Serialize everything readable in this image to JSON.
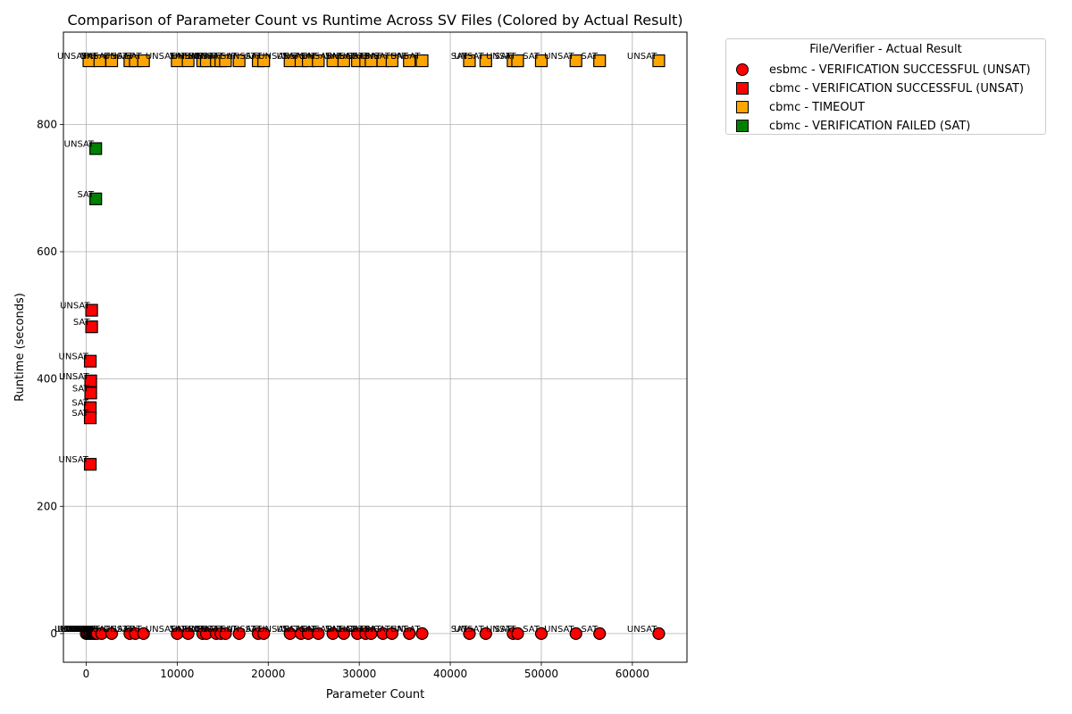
{
  "chart_data": {
    "type": "scatter",
    "title": "Comparison of Parameter Count vs Runtime Across SV Files (Colored by Actual Result)",
    "xlabel": "Parameter Count",
    "ylabel": "Runtime (seconds)",
    "xlim": [
      -2500,
      66000
    ],
    "ylim": [
      -45,
      945
    ],
    "xticks": [
      0,
      10000,
      20000,
      30000,
      40000,
      50000,
      60000
    ],
    "yticks": [
      0,
      200,
      400,
      600,
      800
    ],
    "grid": true,
    "legend": {
      "title": "File/Verifier - Actual Result",
      "placement": "outside-right",
      "entries": [
        {
          "label": "esbmc - VERIFICATION SUCCESSFUL (UNSAT)",
          "marker": "circle",
          "color": "#ff0000"
        },
        {
          "label": "cbmc - VERIFICATION SUCCESSFUL (UNSAT)",
          "marker": "square",
          "color": "#ff0000"
        },
        {
          "label": "cbmc - TIMEOUT",
          "marker": "square",
          "color": "#ffa500"
        },
        {
          "label": "cbmc - VERIFICATION FAILED (SAT)",
          "marker": "square",
          "color": "#008000"
        }
      ]
    },
    "series": [
      {
        "name": "esbmc - VERIFICATION SUCCESSFUL (UNSAT)",
        "marker": "circle",
        "color": "#ff0000",
        "points": [
          {
            "x": 0,
            "y": 0,
            "label": "UNSAT"
          },
          {
            "x": 150,
            "y": 0,
            "label": "SAT"
          },
          {
            "x": 300,
            "y": 0,
            "label": "UNSAT"
          },
          {
            "x": 450,
            "y": 0,
            "label": "SAT"
          },
          {
            "x": 600,
            "y": 0,
            "label": "UNSAT"
          },
          {
            "x": 700,
            "y": 0,
            "label": "SAT"
          },
          {
            "x": 800,
            "y": 0,
            "label": "UNSAT"
          },
          {
            "x": 900,
            "y": 0,
            "label": "SAT"
          },
          {
            "x": 1000,
            "y": 0,
            "label": "UNSAT"
          },
          {
            "x": 1100,
            "y": 0,
            "label": "SAT"
          },
          {
            "x": 1200,
            "y": 0,
            "label": "UNSAT"
          },
          {
            "x": 1700,
            "y": 0,
            "label": "SAT"
          },
          {
            "x": 2800,
            "y": 0,
            "label": "UNSAT"
          },
          {
            "x": 4800,
            "y": 0,
            "label": "SAT"
          },
          {
            "x": 5400,
            "y": 0,
            "label": "UNSAT"
          },
          {
            "x": 6300,
            "y": 0,
            "label": "SAT"
          },
          {
            "x": 10000,
            "y": 0,
            "label": "UNSAT"
          },
          {
            "x": 11200,
            "y": 0,
            "label": "SAT"
          },
          {
            "x": 12800,
            "y": 0,
            "label": "UNSAT"
          },
          {
            "x": 13200,
            "y": 0,
            "label": "SAT"
          },
          {
            "x": 14300,
            "y": 0,
            "label": "UNSAT"
          },
          {
            "x": 14800,
            "y": 0,
            "label": "SAT"
          },
          {
            "x": 15300,
            "y": 0,
            "label": "UNSAT"
          },
          {
            "x": 16800,
            "y": 0,
            "label": "SAT"
          },
          {
            "x": 18900,
            "y": 0,
            "label": "UNSAT"
          },
          {
            "x": 19500,
            "y": 0,
            "label": "SAT"
          },
          {
            "x": 22400,
            "y": 0,
            "label": "UNSAT"
          },
          {
            "x": 23600,
            "y": 0,
            "label": "SAT"
          },
          {
            "x": 24400,
            "y": 0,
            "label": "UNSAT"
          },
          {
            "x": 25500,
            "y": 0,
            "label": "SAT"
          },
          {
            "x": 27100,
            "y": 0,
            "label": "UNSAT"
          },
          {
            "x": 28300,
            "y": 0,
            "label": "SAT"
          },
          {
            "x": 29800,
            "y": 0,
            "label": "UNSAT"
          },
          {
            "x": 30700,
            "y": 0,
            "label": "SAT"
          },
          {
            "x": 31300,
            "y": 0,
            "label": "UNSAT"
          },
          {
            "x": 32600,
            "y": 0,
            "label": "SAT"
          },
          {
            "x": 33600,
            "y": 0,
            "label": "UNSAT"
          },
          {
            "x": 35500,
            "y": 0,
            "label": "SAT"
          },
          {
            "x": 36900,
            "y": 0,
            "label": "UNSAT"
          },
          {
            "x": 42100,
            "y": 0,
            "label": "SAT"
          },
          {
            "x": 43900,
            "y": 0,
            "label": "UNSAT"
          },
          {
            "x": 46900,
            "y": 0,
            "label": "SAT"
          },
          {
            "x": 47400,
            "y": 0,
            "label": "UNSAT"
          },
          {
            "x": 50000,
            "y": 0,
            "label": "SAT"
          },
          {
            "x": 53800,
            "y": 0,
            "label": "UNSAT"
          },
          {
            "x": 56400,
            "y": 0,
            "label": "SAT"
          },
          {
            "x": 62900,
            "y": 0,
            "label": "UNSAT"
          }
        ]
      },
      {
        "name": "cbmc - VERIFICATION SUCCESSFUL (UNSAT)",
        "marker": "square",
        "color": "#ff0000",
        "points": [
          {
            "x": 600,
            "y": 508,
            "label": "UNSAT"
          },
          {
            "x": 600,
            "y": 482,
            "label": "SAT"
          },
          {
            "x": 450,
            "y": 428,
            "label": "UNSAT"
          },
          {
            "x": 500,
            "y": 397,
            "label": "UNSAT"
          },
          {
            "x": 500,
            "y": 378,
            "label": "SAT"
          },
          {
            "x": 450,
            "y": 355,
            "label": "SAT"
          },
          {
            "x": 450,
            "y": 339,
            "label": "SAT"
          },
          {
            "x": 450,
            "y": 266,
            "label": "UNSAT"
          }
        ]
      },
      {
        "name": "cbmc - TIMEOUT",
        "marker": "square",
        "color": "#ffa500",
        "points": [
          {
            "x": 300,
            "y": 900,
            "label": "UNSAT"
          },
          {
            "x": 1500,
            "y": 900,
            "label": "SAT"
          },
          {
            "x": 2800,
            "y": 900,
            "label": "UNSAT"
          },
          {
            "x": 4800,
            "y": 900,
            "label": "SAT"
          },
          {
            "x": 5400,
            "y": 900,
            "label": "UNSAT"
          },
          {
            "x": 6300,
            "y": 900,
            "label": "SAT"
          },
          {
            "x": 10000,
            "y": 900,
            "label": "UNSAT"
          },
          {
            "x": 11200,
            "y": 900,
            "label": "SAT"
          },
          {
            "x": 12800,
            "y": 900,
            "label": "UNSAT"
          },
          {
            "x": 13200,
            "y": 900,
            "label": "SAT"
          },
          {
            "x": 14300,
            "y": 900,
            "label": "UNSAT"
          },
          {
            "x": 14800,
            "y": 900,
            "label": "SAT"
          },
          {
            "x": 15300,
            "y": 900,
            "label": "UNSAT"
          },
          {
            "x": 16800,
            "y": 900,
            "label": "SAT"
          },
          {
            "x": 18900,
            "y": 900,
            "label": "UNSAT"
          },
          {
            "x": 19500,
            "y": 900,
            "label": "SAT"
          },
          {
            "x": 22400,
            "y": 900,
            "label": "UNSAT"
          },
          {
            "x": 23600,
            "y": 900,
            "label": "SAT"
          },
          {
            "x": 24400,
            "y": 900,
            "label": "UNSAT"
          },
          {
            "x": 25500,
            "y": 900,
            "label": "SAT"
          },
          {
            "x": 27100,
            "y": 900,
            "label": "UNSAT"
          },
          {
            "x": 28300,
            "y": 900,
            "label": "SAT"
          },
          {
            "x": 29800,
            "y": 900,
            "label": "UNSAT"
          },
          {
            "x": 30700,
            "y": 900,
            "label": "SAT"
          },
          {
            "x": 31300,
            "y": 900,
            "label": "UNSAT"
          },
          {
            "x": 32600,
            "y": 900,
            "label": "SAT"
          },
          {
            "x": 33600,
            "y": 900,
            "label": "UNSAT"
          },
          {
            "x": 35500,
            "y": 900,
            "label": "SAT"
          },
          {
            "x": 36900,
            "y": 900,
            "label": "UNSAT"
          },
          {
            "x": 42100,
            "y": 900,
            "label": "SAT"
          },
          {
            "x": 43900,
            "y": 900,
            "label": "UNSAT"
          },
          {
            "x": 46900,
            "y": 900,
            "label": "SAT"
          },
          {
            "x": 47400,
            "y": 900,
            "label": "UNSAT"
          },
          {
            "x": 50000,
            "y": 900,
            "label": "SAT"
          },
          {
            "x": 53800,
            "y": 900,
            "label": "UNSAT"
          },
          {
            "x": 56400,
            "y": 900,
            "label": "SAT"
          },
          {
            "x": 62900,
            "y": 900,
            "label": "UNSAT"
          }
        ]
      },
      {
        "name": "cbmc - VERIFICATION FAILED (SAT)",
        "marker": "square",
        "color": "#008000",
        "points": [
          {
            "x": 1050,
            "y": 762,
            "label": "UNSAT"
          },
          {
            "x": 1050,
            "y": 683,
            "label": "SAT"
          }
        ]
      }
    ]
  }
}
